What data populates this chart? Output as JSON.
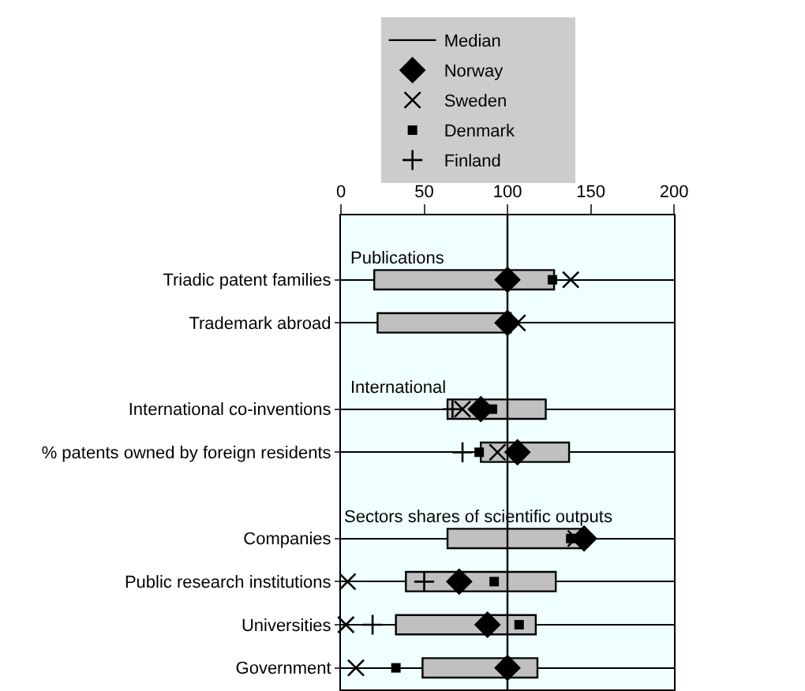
{
  "chart_data": {
    "type": "bar",
    "orientation": "horizontal",
    "color": "#c0c0c0",
    "categories": [
      null,
      "Triadic patent families",
      "Trademark abroad",
      null,
      "International co-inventions",
      "% patents owned by foreign residents",
      null,
      "Companies",
      "Public research institutions",
      "Universities",
      "Government"
    ],
    "base": [
      null,
      20,
      22,
      null,
      64,
      84,
      null,
      64,
      39,
      33,
      49
    ],
    "values": [
      null,
      108,
      80,
      null,
      59,
      53,
      null,
      80,
      90,
      84,
      69
    ],
    "series": [
      {
        "name": "Norway",
        "type": "scatter",
        "marker": "diamond",
        "color": "#000000",
        "values": [
          null,
          100,
          100,
          null,
          84,
          106,
          null,
          146,
          71,
          88,
          100
        ]
      },
      {
        "name": "Sweden",
        "type": "scatter",
        "marker": "cross",
        "color": "#000000",
        "values": [
          null,
          138,
          106,
          null,
          73,
          94,
          null,
          141,
          4,
          3,
          9
        ]
      },
      {
        "name": "Denmark",
        "type": "scatter",
        "marker": "square",
        "color": "#000000",
        "values": [
          null,
          127,
          null,
          null,
          91,
          83,
          null,
          138,
          92,
          107,
          33
        ]
      },
      {
        "name": "Finland",
        "type": "scatter",
        "marker": "plus",
        "color": "#000000",
        "values": [
          null,
          null,
          null,
          null,
          67,
          73,
          null,
          null,
          50,
          19,
          null
        ]
      }
    ],
    "ref_lines": [
      {
        "axis": "x",
        "value": 100,
        "label": "Median",
        "color": "#000000"
      }
    ],
    "annotations": [
      "Publications",
      "International",
      "Sectors shares of scientific outputs"
    ],
    "xlim": [
      0,
      200
    ],
    "xticks": [
      0,
      50,
      100,
      150,
      200
    ],
    "grid": "y",
    "legend": "top"
  }
}
